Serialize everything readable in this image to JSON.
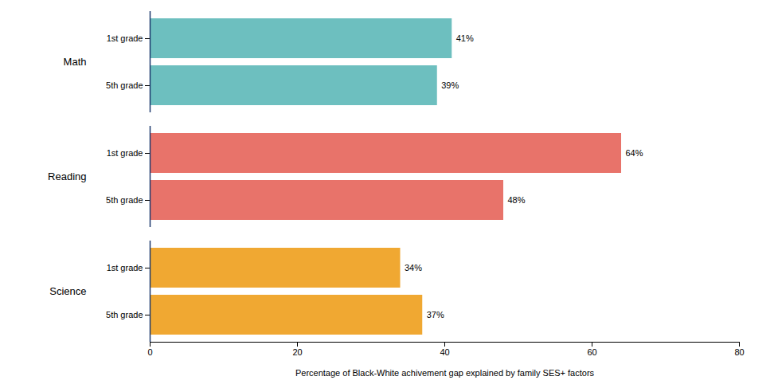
{
  "chart_data": {
    "type": "bar",
    "orientation": "horizontal",
    "categories": [
      "1st grade",
      "5th grade",
      "1st grade",
      "5th grade",
      "1st grade",
      "5th grade"
    ],
    "groups": [
      "Math",
      "Math",
      "Reading",
      "Reading",
      "Science",
      "Science"
    ],
    "values": [
      41,
      39,
      64,
      48,
      34,
      37
    ],
    "value_labels": [
      "41%",
      "39%",
      "64%",
      "48%",
      "34%",
      "37%"
    ],
    "colors": [
      "#6dbfbf",
      "#6dbfbf",
      "#e8736a",
      "#e8736a",
      "#f0a832",
      "#f0a832"
    ],
    "xlabel": "Percentage of Black-White achivement gap explained by family SES+ factors",
    "xlim": [
      0,
      80
    ],
    "xticks": [
      0,
      20,
      40,
      60,
      80
    ],
    "data_labels": true,
    "grid": false
  }
}
